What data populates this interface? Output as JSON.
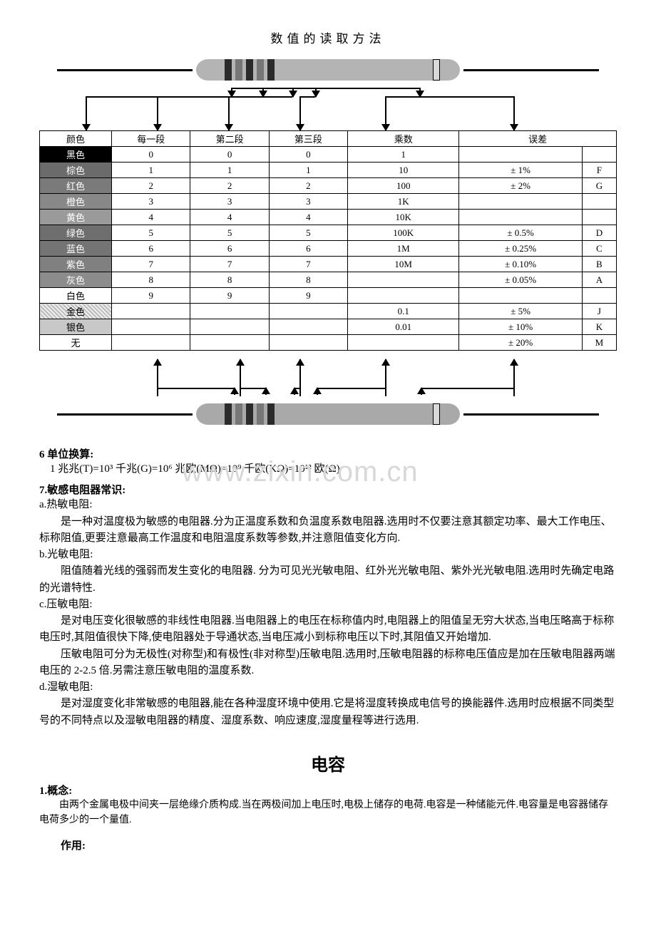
{
  "diagram_title": "数值的读取方法",
  "watermark": "www.zixin.com.cn",
  "resistor_top": {
    "body_color": "#b4b4b4",
    "bands": [
      "#2b2b2b",
      "#777",
      "#2b2b2b",
      "#777",
      "#2b2b2b"
    ],
    "tolerance_band": "#d9d9d9"
  },
  "resistor_bottom": {
    "body_color": "#a9a9a9",
    "bands": [
      "#2b2b2b",
      "#777",
      "#2b2b2b",
      "#777",
      "#2b2b2b"
    ],
    "tolerance_band": "#d9d9d9"
  },
  "table": {
    "headers": [
      "颜色",
      "每一段",
      "第二段",
      "第三段",
      "乘数",
      "误差",
      ""
    ],
    "col_widths": [
      "11%",
      "12%",
      "12%",
      "12%",
      "17%",
      "24%",
      "12%"
    ],
    "rows": [
      {
        "label": "黑色",
        "bg": "#000000",
        "fg": "#ffffff",
        "cells": [
          "0",
          "0",
          "0",
          "1",
          "",
          ""
        ]
      },
      {
        "label": "棕色",
        "bg": "#6b6b6b",
        "fg": "#ffffff",
        "cells": [
          "1",
          "1",
          "1",
          "10",
          "± 1%",
          "F"
        ]
      },
      {
        "label": "红色",
        "bg": "#7a7a7a",
        "fg": "#ffffff",
        "cells": [
          "2",
          "2",
          "2",
          "100",
          "± 2%",
          "G"
        ]
      },
      {
        "label": "橙色",
        "bg": "#888888",
        "fg": "#ffffff",
        "cells": [
          "3",
          "3",
          "3",
          "1K",
          "",
          ""
        ]
      },
      {
        "label": "黄色",
        "bg": "#9a9a9a",
        "fg": "#ffffff",
        "cells": [
          "4",
          "4",
          "4",
          "10K",
          "",
          ""
        ]
      },
      {
        "label": "绿色",
        "bg": "#6e6e6e",
        "fg": "#ffffff",
        "cells": [
          "5",
          "5",
          "5",
          "100K",
          "± 0.5%",
          "D"
        ]
      },
      {
        "label": "蓝色",
        "bg": "#747474",
        "fg": "#ffffff",
        "cells": [
          "6",
          "6",
          "6",
          "1M",
          "± 0.25%",
          "C"
        ]
      },
      {
        "label": "紫色",
        "bg": "#808080",
        "fg": "#ffffff",
        "cells": [
          "7",
          "7",
          "7",
          "10M",
          "± 0.10%",
          "B"
        ]
      },
      {
        "label": "灰色",
        "bg": "#8c8c8c",
        "fg": "#ffffff",
        "cells": [
          "8",
          "8",
          "8",
          "",
          "± 0.05%",
          "A"
        ]
      },
      {
        "label": "白色",
        "bg": "#ffffff",
        "fg": "#000000",
        "cells": [
          "9",
          "9",
          "9",
          "",
          "",
          ""
        ]
      },
      {
        "label": "金色",
        "bg": "#d0d0d0",
        "fg": "#000000",
        "hatch": true,
        "cells": [
          "",
          "",
          "",
          "0.1",
          "± 5%",
          "J"
        ]
      },
      {
        "label": "银色",
        "bg": "#c8c8c8",
        "fg": "#000000",
        "cells": [
          "",
          "",
          "",
          "0.01",
          "± 10%",
          "K"
        ]
      },
      {
        "label": "无",
        "bg": "#ffffff",
        "fg": "#000000",
        "cells": [
          "",
          "",
          "",
          "",
          "± 20%",
          "M"
        ]
      }
    ]
  },
  "sec6_title": "6 单位换算:",
  "sec6_line": "1 兆兆(T)=10³ 千兆(G)=10⁶ 兆欧(MΩ)=10⁹ 千欧(KΩ)=10¹² 欧(Ω)",
  "sec7_title": "7.敏感电阻器常识:",
  "sec7": {
    "a_label": "a.热敏电阻:",
    "a_body": "是一种对温度极为敏感的电阻器.分为正温度系数和负温度系数电阻器.选用时不仅要注意其额定功率、最大工作电压、标称阻值,更要注意最高工作温度和电阻温度系数等参数,并注意阻值变化方向.",
    "b_label": "b.光敏电阻:",
    "b_body": "阻值随着光线的强弱而发生变化的电阻器. 分为可见光光敏电阻、红外光光敏电阻、紫外光光敏电阻.选用时先确定电路的光谱特性.",
    "c_label": "c.压敏电阻:",
    "c_body1": "是对电压变化很敏感的非线性电阻器.当电阻器上的电压在标称值内时,电阻器上的阻值呈无穷大状态,当电压略高于标称电压时,其阻值很快下降,使电阻器处于导通状态,当电压减小到标称电压以下时,其阻值又开始增加.",
    "c_body2": "压敏电阻可分为无极性(对称型)和有极性(非对称型)压敏电阻.选用时,压敏电阻器的标称电压值应是加在压敏电阻器两端电压的 2-2.5 倍.另需注意压敏电阻的温度系数.",
    "d_label": "d.湿敏电阻:",
    "d_body": "是对湿度变化非常敏感的电阻器,能在各种湿度环境中使用.它是将湿度转换成电信号的换能器件.选用时应根据不同类型号的不同特点以及湿敏电阻器的精度、湿度系数、响应速度,湿度量程等进行选用."
  },
  "cap_title": "电容",
  "cap_sec1_title": "1.概念:",
  "cap_sec1_body": "由两个金属电极中间夹一层绝缘介质构成.当在两极间加上电压时,电极上储存的电荷.电容是一种储能元件.电容量是电容器储存电荷多少的一个量值.",
  "cap_effect_label": "作用:"
}
